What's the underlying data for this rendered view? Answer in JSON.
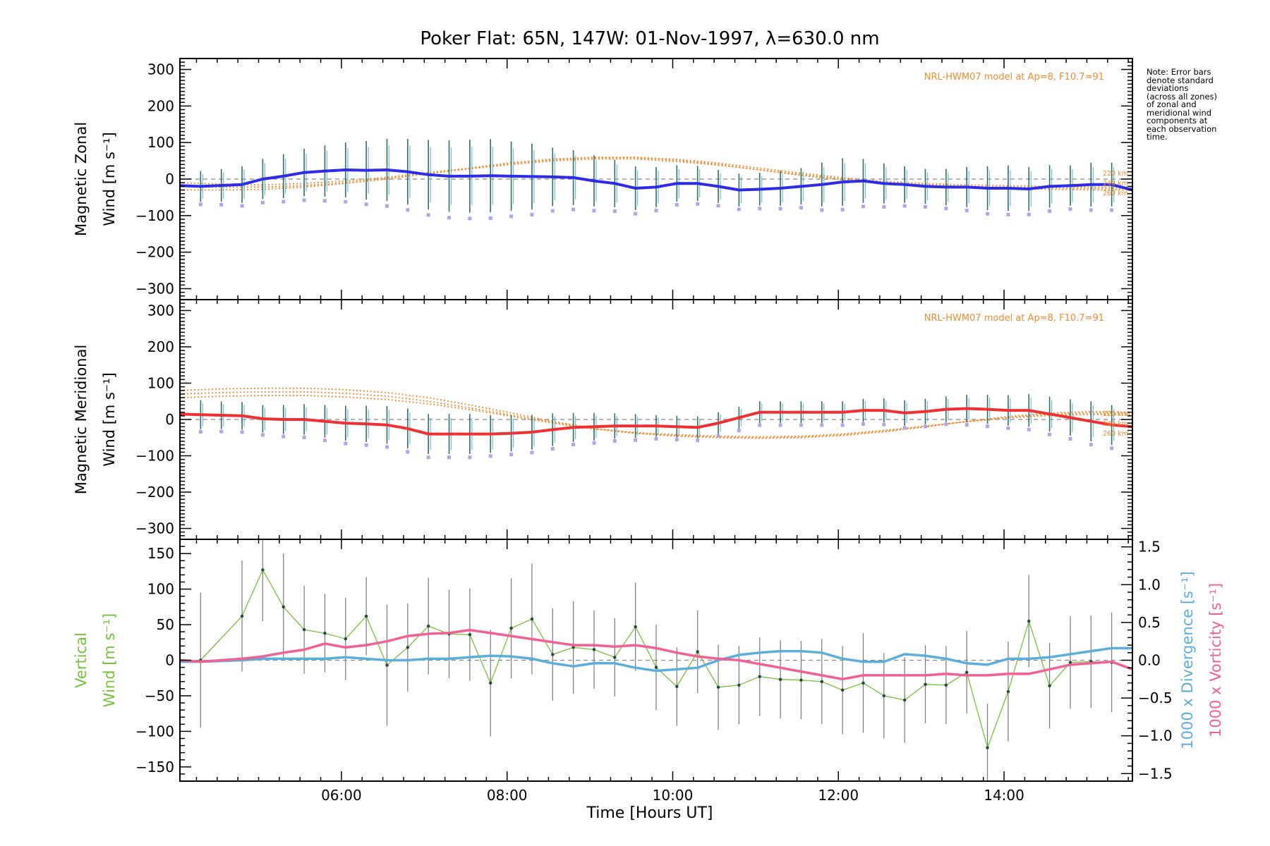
{
  "chart_data": {
    "title": "Poker Flat: 65N, 147W: 01-Nov-1997, λ=630.0 nm",
    "xlabel": "Time [Hours UT]",
    "xlim": [
      4.05,
      15.55
    ],
    "xticks": [
      6,
      8,
      10,
      12,
      14
    ],
    "xtick_labels": [
      "06:00",
      "08:00",
      "10:00",
      "12:00",
      "14:00"
    ],
    "note": [
      "Note: Error bars",
      "denote standard",
      "deviations",
      "(across all zones)",
      "of zonal and",
      "meridional wind",
      "components at",
      "each observation",
      "time."
    ],
    "colors": {
      "zonal": "#2b2bea",
      "meridional": "#f03030",
      "vertical": "#77c03a",
      "divergence": "#5aaedb",
      "vorticity": "#f05f96",
      "model": "#f08c2a",
      "errorbar": "#2f6f60",
      "scatter": "#b3a3e6"
    },
    "panels": [
      {
        "id": "zonal",
        "type": "line",
        "ylabel_lines": [
          "Magnetic Zonal",
          "Wind [m s⁻¹]"
        ],
        "ylim": [
          -330,
          330
        ],
        "yticks": [
          -300,
          -200,
          -100,
          0,
          100,
          200,
          300
        ],
        "model_label": "NRL-HWM07 model at Ap=8, F10.7=91",
        "model_altitudes": [
          "220 km",
          "240 km",
          "260 km"
        ],
        "times": [
          4.05,
          4.3,
          4.8,
          5.05,
          5.3,
          5.55,
          5.8,
          6.05,
          6.3,
          6.55,
          6.8,
          7.05,
          7.3,
          7.55,
          7.8,
          8.05,
          8.3,
          8.55,
          8.8,
          9.05,
          9.3,
          9.55,
          9.8,
          10.05,
          10.3,
          10.55,
          10.8,
          11.05,
          11.3,
          11.55,
          11.8,
          12.05,
          12.3,
          12.55,
          12.8,
          13.05,
          13.3,
          13.55,
          13.8,
          14.05,
          14.3,
          14.55,
          14.8,
          15.05,
          15.3,
          15.55
        ],
        "values": [
          -18,
          -20,
          -15,
          0,
          8,
          18,
          22,
          25,
          24,
          25,
          20,
          12,
          8,
          8,
          9,
          8,
          7,
          6,
          4,
          -5,
          -12,
          -25,
          -22,
          -12,
          -12,
          -20,
          -30,
          -28,
          -25,
          -20,
          -15,
          -8,
          -5,
          -12,
          -15,
          -20,
          -22,
          -22,
          -25,
          -25,
          -27,
          -20,
          -18,
          -15,
          -15,
          -30
        ],
        "errors": [
          40,
          42,
          45,
          50,
          55,
          60,
          65,
          70,
          75,
          80,
          85,
          90,
          95,
          98,
          100,
          100,
          95,
          90,
          80,
          75,
          70,
          65,
          60,
          55,
          50,
          48,
          45,
          45,
          45,
          48,
          50,
          60,
          65,
          60,
          55,
          50,
          48,
          50,
          55,
          60,
          62,
          60,
          58,
          55,
          60,
          60
        ],
        "vertical_bar_times": [
          4.3,
          4.55,
          4.8,
          5.05,
          5.3,
          5.55,
          5.8,
          6.05,
          6.3,
          6.55,
          6.8,
          7.05,
          7.3,
          7.55,
          7.8,
          8.05,
          8.3,
          8.55,
          8.8,
          9.05,
          9.3,
          9.55,
          9.8,
          10.05,
          10.3,
          10.55,
          10.8,
          11.05,
          11.3,
          11.55,
          11.8,
          12.05,
          12.3,
          12.55,
          12.8,
          13.05,
          13.3,
          13.55,
          13.8,
          14.05,
          14.3,
          14.55,
          14.8,
          15.05,
          15.3
        ],
        "model": [
          {
            "altitude": "220 km",
            "values": [
              -30,
              -30,
              -28,
              -22,
              -12,
              0,
              15,
              30,
              45,
              55,
              60,
              58,
              52,
              40,
              25,
              10,
              -2,
              -12,
              -18,
              -22,
              -25,
              -28,
              -30,
              -30
            ]
          },
          {
            "altitude": "240 km",
            "values": [
              -20,
              -22,
              -22,
              -18,
              -10,
              2,
              15,
              28,
              40,
              50,
              55,
              55,
              48,
              38,
              25,
              12,
              0,
              -10,
              -15,
              -20,
              -22,
              -24,
              -26,
              -26
            ]
          },
          {
            "altitude": "260 km",
            "values": [
              -10,
              -14,
              -16,
              -12,
              -5,
              5,
              18,
              30,
              42,
              52,
              58,
              60,
              54,
              44,
              30,
              16,
              4,
              -6,
              -12,
              -16,
              -18,
              -20,
              -22,
              -22
            ]
          }
        ]
      },
      {
        "id": "meridional",
        "type": "line",
        "ylabel_lines": [
          "Magnetic Meridional",
          "Wind [m s⁻¹]"
        ],
        "ylim": [
          -330,
          330
        ],
        "yticks": [
          -300,
          -200,
          -100,
          0,
          100,
          200,
          300
        ],
        "model_label": "NRL-HWM07 model at Ap=8, F10.7=91",
        "model_altitudes": [
          "220 km",
          "240 km",
          "260 km"
        ],
        "times": [
          4.05,
          4.3,
          4.8,
          5.05,
          5.3,
          5.55,
          5.8,
          6.05,
          6.3,
          6.55,
          6.8,
          7.05,
          7.3,
          7.55,
          7.8,
          8.05,
          8.3,
          8.55,
          8.8,
          9.05,
          9.3,
          9.55,
          9.8,
          10.05,
          10.3,
          10.55,
          10.8,
          11.05,
          11.3,
          11.55,
          11.8,
          12.05,
          12.3,
          12.55,
          12.8,
          13.05,
          13.3,
          13.55,
          13.8,
          14.05,
          14.3,
          14.55,
          14.8,
          15.05,
          15.3,
          15.55
        ],
        "values": [
          15,
          13,
          10,
          2,
          0,
          0,
          -5,
          -10,
          -12,
          -15,
          -25,
          -40,
          -40,
          -40,
          -40,
          -38,
          -35,
          -28,
          -22,
          -20,
          -18,
          -18,
          -18,
          -20,
          -22,
          -10,
          5,
          20,
          20,
          20,
          20,
          20,
          25,
          25,
          18,
          22,
          28,
          30,
          28,
          25,
          25,
          15,
          5,
          -5,
          -15,
          -20
        ],
        "errors": [
          40,
          40,
          38,
          38,
          38,
          40,
          42,
          45,
          48,
          50,
          52,
          55,
          55,
          55,
          55,
          52,
          50,
          48,
          45,
          40,
          38,
          35,
          33,
          30,
          30,
          30,
          30,
          30,
          30,
          30,
          30,
          30,
          30,
          32,
          33,
          35,
          35,
          35,
          38,
          40,
          42,
          45,
          48,
          50,
          55,
          55
        ],
        "vertical_bar_times": [
          4.3,
          4.55,
          4.8,
          5.05,
          5.3,
          5.55,
          5.8,
          6.05,
          6.3,
          6.55,
          6.8,
          7.05,
          7.3,
          7.55,
          7.8,
          8.05,
          8.3,
          8.55,
          8.8,
          9.05,
          9.3,
          9.55,
          9.8,
          10.05,
          10.3,
          10.55,
          10.8,
          11.05,
          11.3,
          11.55,
          11.8,
          12.05,
          12.3,
          12.55,
          12.8,
          13.05,
          13.3,
          13.55,
          13.8,
          14.05,
          14.3,
          14.55,
          14.8,
          15.05,
          15.3
        ],
        "model": [
          {
            "altitude": "220 km",
            "values": [
              80,
              84,
              86,
              86,
              82,
              74,
              60,
              40,
              18,
              -5,
              -25,
              -38,
              -46,
              -50,
              -52,
              -50,
              -44,
              -34,
              -20,
              -5,
              8,
              18,
              22,
              20
            ]
          },
          {
            "altitude": "240 km",
            "values": [
              70,
              74,
              76,
              76,
              72,
              64,
              50,
              32,
              12,
              -8,
              -26,
              -38,
              -44,
              -48,
              -50,
              -48,
              -42,
              -32,
              -20,
              -6,
              6,
              14,
              18,
              16
            ]
          },
          {
            "altitude": "260 km",
            "values": [
              60,
              64,
              66,
              66,
              62,
              55,
              43,
              27,
              9,
              -10,
              -26,
              -36,
              -42,
              -46,
              -48,
              -46,
              -40,
              -30,
              -18,
              -6,
              4,
              11,
              14,
              12
            ]
          }
        ]
      },
      {
        "id": "vertical",
        "type": "line",
        "ylabel_lines": [
          "Vertical",
          "Wind [m s⁻¹]"
        ],
        "y2label_divergence": "1000 x Divergence [s⁻¹]",
        "y2label_vorticity": "1000 x Vorticity [s⁻¹]",
        "ylim": [
          -170,
          170
        ],
        "yticks": [
          -150,
          -100,
          -50,
          0,
          50,
          100,
          150
        ],
        "y2lim": [
          -1.6,
          1.6
        ],
        "y2ticks": [
          -1.5,
          -1.0,
          -0.5,
          0.0,
          0.5,
          1.0,
          1.5
        ],
        "y2tick_labels": [
          "-1.5",
          "-1.0",
          "-0.5",
          "0.0",
          "0.5",
          "1.0",
          "1.5"
        ],
        "vertical_wind": {
          "times": [
            4.3,
            4.8,
            5.05,
            5.3,
            5.55,
            5.8,
            6.05,
            6.3,
            6.55,
            6.8,
            7.05,
            7.3,
            7.55,
            7.8,
            8.05,
            8.3,
            8.55,
            8.8,
            9.05,
            9.3,
            9.55,
            9.8,
            10.05,
            10.3,
            10.55,
            10.8,
            11.05,
            11.3,
            11.55,
            11.8,
            12.05,
            12.3,
            12.55,
            12.8,
            13.05,
            13.3,
            13.55,
            13.8,
            14.05,
            14.3,
            14.55,
            14.8,
            15.05,
            15.3
          ],
          "values": [
            0,
            62,
            127,
            75,
            43,
            38,
            30,
            62,
            -7,
            18,
            48,
            37,
            36,
            -32,
            45,
            58,
            8,
            18,
            15,
            4,
            47,
            -10,
            -37,
            12,
            -38,
            -35,
            -23,
            -27,
            -28,
            -30,
            -42,
            -32,
            -50,
            -56,
            -34,
            -35,
            -17,
            -123,
            -44,
            55,
            -36,
            -3,
            -2,
            -3
          ],
          "errors": [
            95,
            78,
            72,
            75,
            62,
            55,
            58,
            55,
            85,
            62,
            68,
            62,
            65,
            75,
            70,
            78,
            65,
            65,
            55,
            55,
            62,
            60,
            55,
            58,
            60,
            55,
            55,
            55,
            55,
            60,
            62,
            70,
            60,
            60,
            55,
            55,
            58,
            62,
            70,
            65,
            60,
            65,
            65,
            70
          ]
        },
        "divergence": {
          "times": [
            4.05,
            4.3,
            4.8,
            5.05,
            5.3,
            5.55,
            5.8,
            6.05,
            6.3,
            6.55,
            6.8,
            7.05,
            7.3,
            7.55,
            7.8,
            8.05,
            8.3,
            8.55,
            8.8,
            9.05,
            9.3,
            9.55,
            9.8,
            10.05,
            10.3,
            10.55,
            10.8,
            11.05,
            11.3,
            11.55,
            11.8,
            12.05,
            12.3,
            12.55,
            12.8,
            13.05,
            13.3,
            13.55,
            13.8,
            14.05,
            14.3,
            14.55,
            14.8,
            15.05,
            15.3,
            15.55
          ],
          "values": [
            -0.02,
            -0.02,
            0,
            0.02,
            0.02,
            0.02,
            0.02,
            0.04,
            0.02,
            0,
            0,
            0.02,
            0.02,
            0.04,
            0.06,
            0.05,
            0.02,
            -0.04,
            -0.08,
            -0.04,
            -0.04,
            -0.1,
            -0.14,
            -0.12,
            -0.1,
            0,
            0.07,
            0.1,
            0.12,
            0.12,
            0.1,
            0.02,
            -0.02,
            -0.02,
            0.08,
            0.06,
            0.02,
            -0.04,
            -0.06,
            0.02,
            0.02,
            0.04,
            0.08,
            0.12,
            0.16,
            0.16
          ]
        },
        "vorticity": {
          "times": [
            4.05,
            4.3,
            4.8,
            5.05,
            5.3,
            5.55,
            5.8,
            6.05,
            6.3,
            6.55,
            6.8,
            7.05,
            7.3,
            7.55,
            7.8,
            8.05,
            8.3,
            8.55,
            8.8,
            9.05,
            9.3,
            9.55,
            9.8,
            10.05,
            10.3,
            10.55,
            10.8,
            11.05,
            11.3,
            11.55,
            11.8,
            12.05,
            12.3,
            12.55,
            12.8,
            13.05,
            13.3,
            13.55,
            13.8,
            14.05,
            14.3,
            14.55,
            14.8,
            15.05,
            15.3,
            15.55
          ],
          "values": [
            0,
            -0.02,
            0.02,
            0.05,
            0.1,
            0.14,
            0.22,
            0.17,
            0.2,
            0.25,
            0.32,
            0.35,
            0.36,
            0.4,
            0.36,
            0.32,
            0.28,
            0.24,
            0.2,
            0.2,
            0.18,
            0.2,
            0.16,
            0.1,
            0.05,
            0.02,
            0,
            -0.05,
            -0.1,
            -0.15,
            -0.2,
            -0.25,
            -0.2,
            -0.2,
            -0.2,
            -0.2,
            -0.18,
            -0.2,
            -0.2,
            -0.18,
            -0.18,
            -0.12,
            -0.06,
            -0.04,
            -0.02,
            -0.12
          ]
        }
      }
    ]
  }
}
